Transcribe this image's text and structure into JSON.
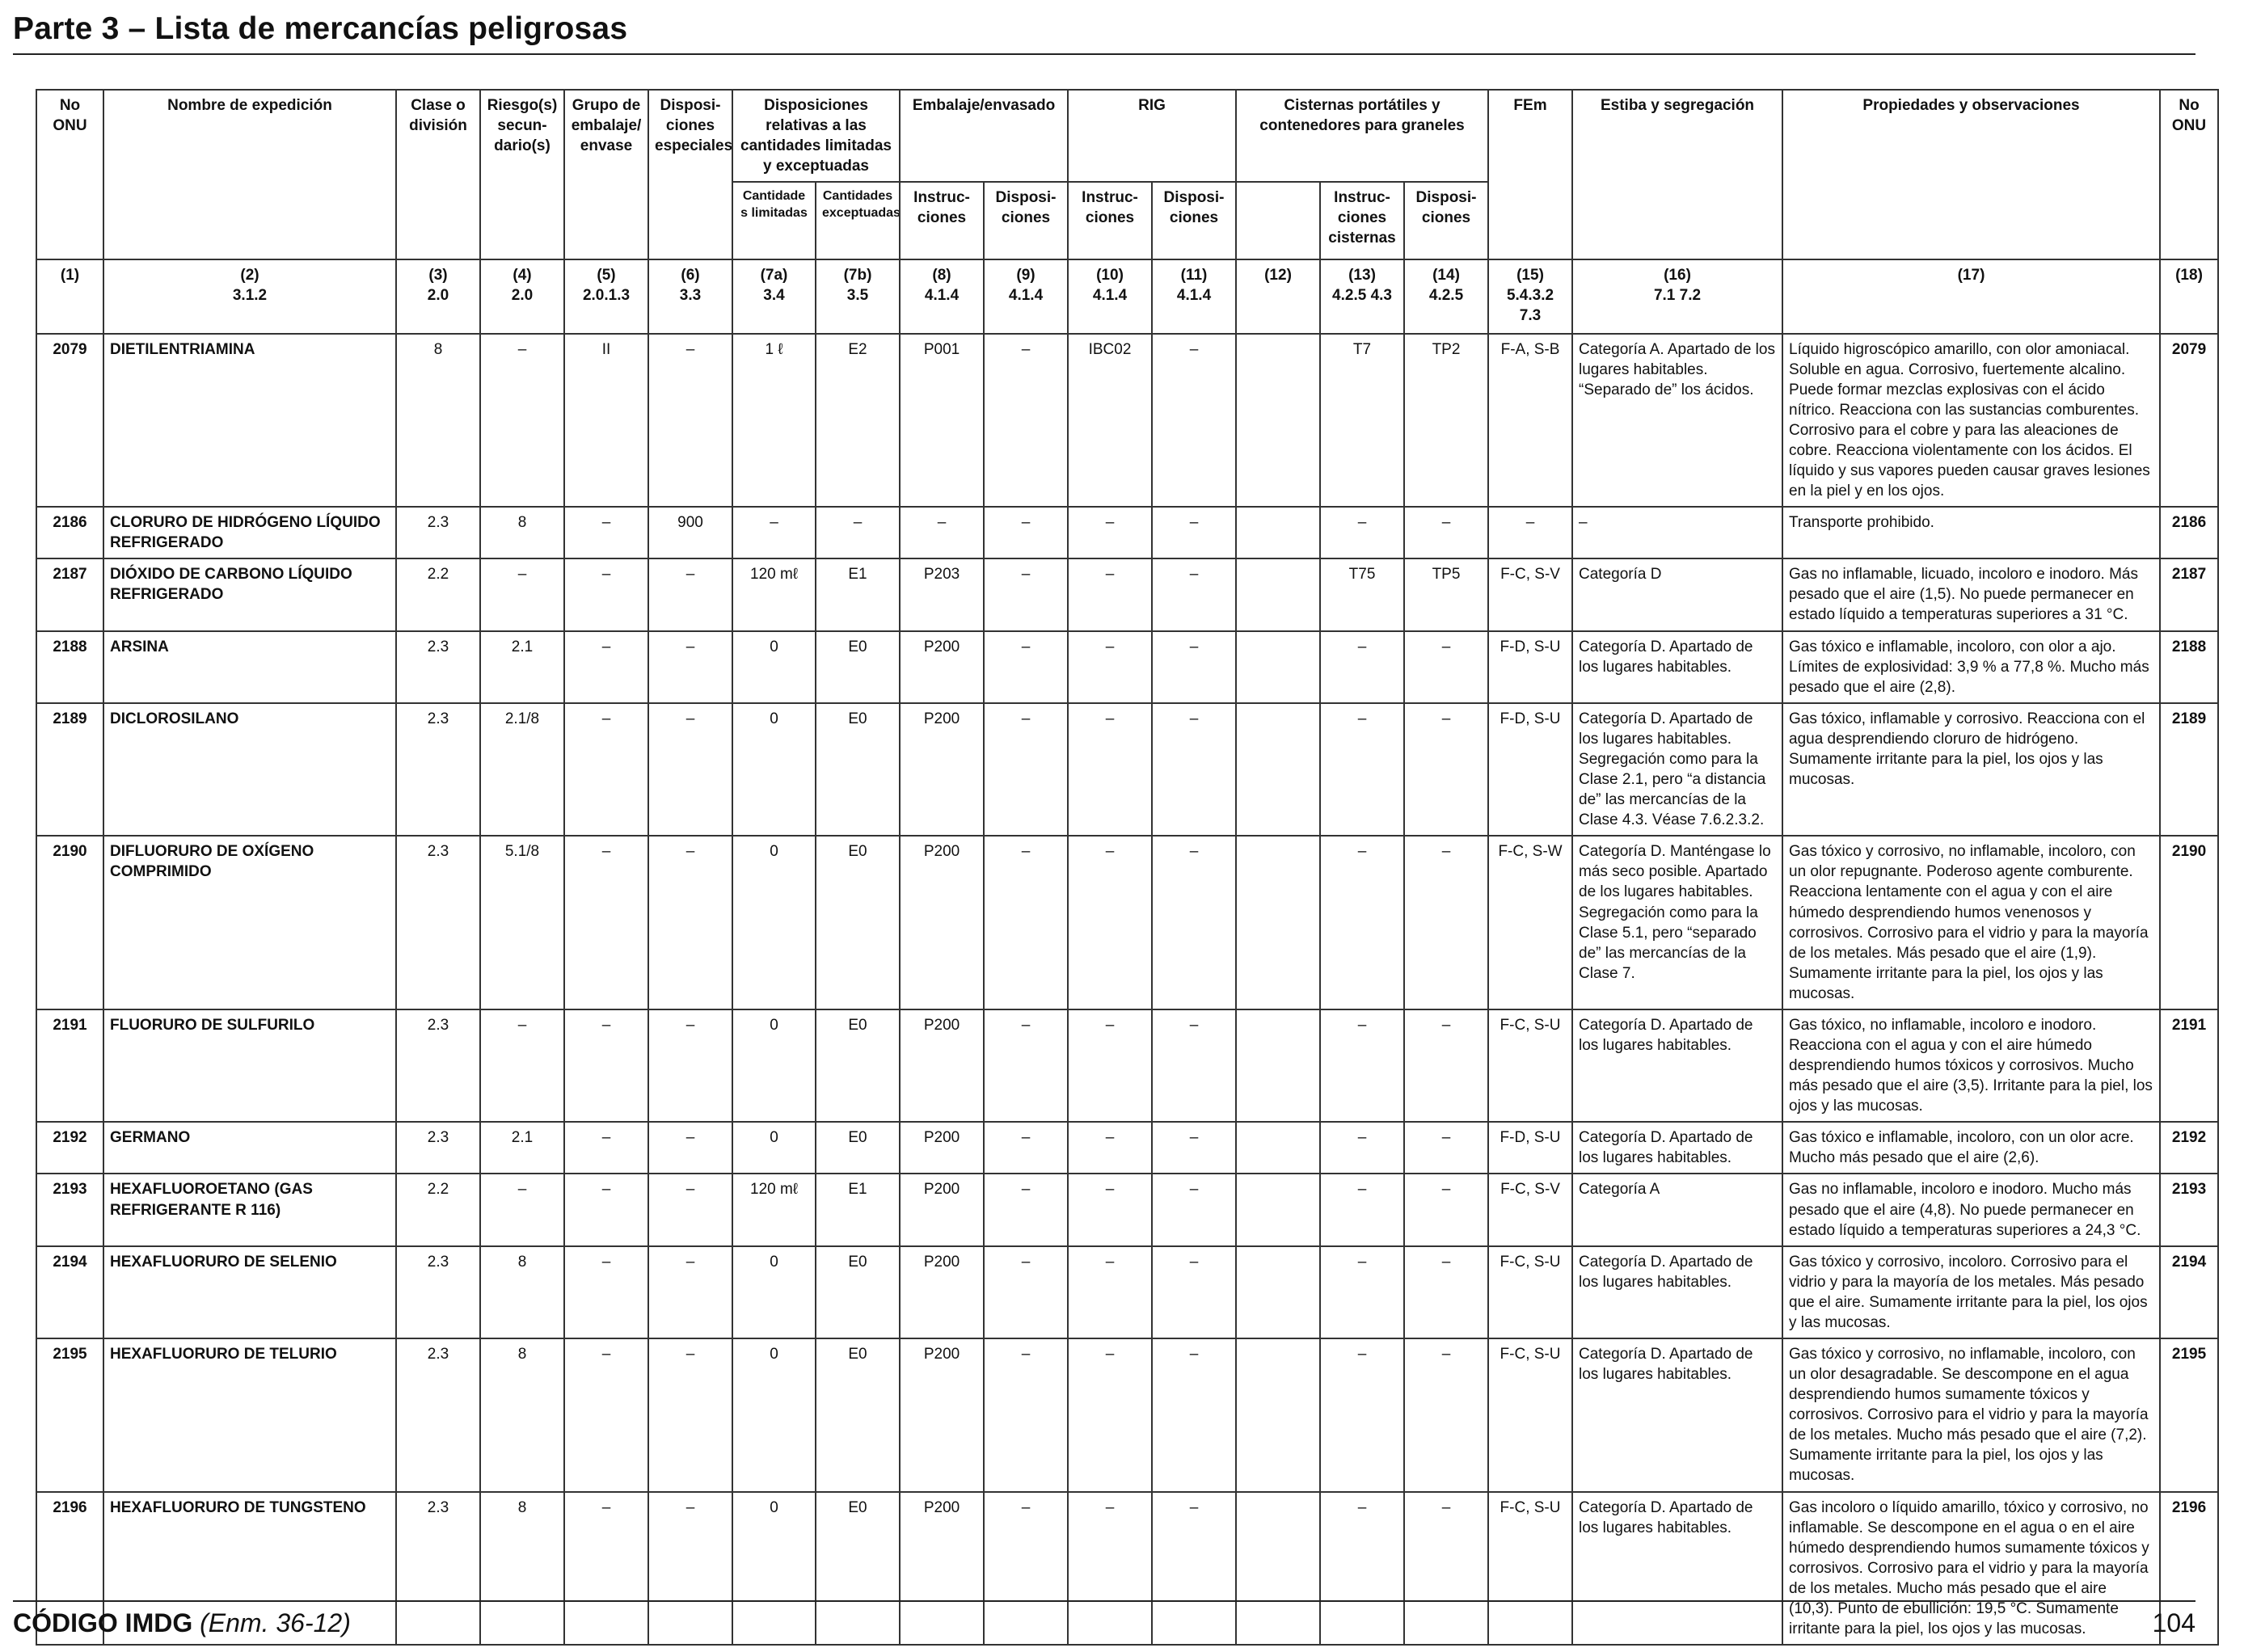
{
  "page": {
    "title": "Parte 3 – Lista de mercancías peligrosas",
    "footer_code": "CÓDIGO IMDG",
    "footer_amendment": "(Enm. 36-12)",
    "page_number": "104"
  },
  "headers": {
    "no_onu": "No ONU",
    "nombre": "Nombre de expedición",
    "clase": "Clase o división",
    "riesgo": "Riesgo(s) secun-dario(s)",
    "grupo": "Grupo de embalaje/ envase",
    "dispos_especiales": "Disposi-ciones especiales",
    "disp_relativas": "Disposiciones relativas a las cantidades limitadas y exceptuadas",
    "embalaje": "Embalaje/envasado",
    "rig": "RIG",
    "cisternas": "Cisternas portátiles y contenedores para graneles",
    "fem": "FEm",
    "estiba": "Estiba y segregación",
    "propiedades": "Propiedades y observaciones",
    "no_onu_right": "No ONU",
    "cant_limitadas": "Cantidade s limitadas",
    "cant_exceptuadas": "Cantidades exceptuadas",
    "instrucciones_8": "Instruc-ciones",
    "disposiciones_9": "Disposi-ciones",
    "instrucciones_10": "Instruc-ciones",
    "disposiciones_11": "Disposi-ciones",
    "instrucciones_13": "Instruc-ciones cisternas",
    "disposiciones_14": "Disposi-ciones"
  },
  "column_numbers": [
    {
      "n": "(1)",
      "ref": ""
    },
    {
      "n": "(2)",
      "ref": "3.1.2"
    },
    {
      "n": "(3)",
      "ref": "2.0"
    },
    {
      "n": "(4)",
      "ref": "2.0"
    },
    {
      "n": "(5)",
      "ref": "2.0.1.3"
    },
    {
      "n": "(6)",
      "ref": "3.3"
    },
    {
      "n": "(7a)",
      "ref": "3.4"
    },
    {
      "n": "(7b)",
      "ref": "3.5"
    },
    {
      "n": "(8)",
      "ref": "4.1.4"
    },
    {
      "n": "(9)",
      "ref": "4.1.4"
    },
    {
      "n": "(10)",
      "ref": "4.1.4"
    },
    {
      "n": "(11)",
      "ref": "4.1.4"
    },
    {
      "n": "(12)",
      "ref": ""
    },
    {
      "n": "(13)",
      "ref": "4.2.5 4.3"
    },
    {
      "n": "(14)",
      "ref": "4.2.5"
    },
    {
      "n": "(15)",
      "ref": "5.4.3.2 7.3"
    },
    {
      "n": "(16)",
      "ref": "7.1 7.2"
    },
    {
      "n": "(17)",
      "ref": ""
    },
    {
      "n": "(18)",
      "ref": ""
    }
  ],
  "rows": [
    {
      "no": "2079",
      "name": "DIETILENTRIAMINA",
      "clase": "8",
      "riesgo": "–",
      "grupo": "II",
      "dispos": "–",
      "c7a": "1 ℓ",
      "c7b": "E2",
      "c8": "P001",
      "c9": "–",
      "c10": "IBC02",
      "c11": "–",
      "c12": "",
      "c13": "T7",
      "c14": "TP2",
      "fem": "F-A, S-B",
      "estiba": "Categoría A. Apartado de los lugares habitables. “Separado de” los ácidos.",
      "obs": "Líquido higroscópico amarillo, con olor amoniacal. Soluble en agua. Corrosivo, fuertemente alcalino. Puede formar mezclas explosivas con el ácido nítrico. Reacciona con las sustancias comburentes. Corrosivo para el cobre y para las aleaciones de cobre. Reacciona violentamente con los ácidos. El líquido y sus vapores pueden causar graves lesiones en la piel y en los ojos.",
      "no_r": "2079"
    },
    {
      "no": "2186",
      "name": "CLORURO DE HIDRÓGENO LÍQUIDO REFRIGERADO",
      "clase": "2.3",
      "riesgo": "8",
      "grupo": "–",
      "dispos": "900",
      "c7a": "–",
      "c7b": "–",
      "c8": "–",
      "c9": "–",
      "c10": "–",
      "c11": "–",
      "c12": "",
      "c13": "–",
      "c14": "–",
      "fem": "–",
      "estiba": "–",
      "obs": "Transporte prohibido.",
      "no_r": "2186"
    },
    {
      "no": "2187",
      "name": "DIÓXIDO DE CARBONO LÍQUIDO REFRIGERADO",
      "clase": "2.2",
      "riesgo": "–",
      "grupo": "–",
      "dispos": "–",
      "c7a": "120 mℓ",
      "c7b": "E1",
      "c8": "P203",
      "c9": "–",
      "c10": "–",
      "c11": "–",
      "c12": "",
      "c13": "T75",
      "c14": "TP5",
      "fem": "F-C, S-V",
      "estiba": "Categoría D",
      "obs": "Gas no inflamable, licuado, incoloro e inodoro. Más pesado que el aire (1,5). No puede permanecer en estado líquido a temperaturas superiores a 31 °C.",
      "no_r": "2187"
    },
    {
      "no": "2188",
      "name": "ARSINA",
      "clase": "2.3",
      "riesgo": "2.1",
      "grupo": "–",
      "dispos": "–",
      "c7a": "0",
      "c7b": "E0",
      "c8": "P200",
      "c9": "–",
      "c10": "–",
      "c11": "–",
      "c12": "",
      "c13": "–",
      "c14": "–",
      "fem": "F-D, S-U",
      "estiba": "Categoría D. Apartado de los lugares habitables.",
      "obs": "Gas tóxico e inflamable, incoloro, con olor a ajo. Límites de explosividad: 3,9 % a 77,8 %. Mucho más pesado que el aire (2,8).",
      "no_r": "2188"
    },
    {
      "no": "2189",
      "name": "DICLOROSILANO",
      "clase": "2.3",
      "riesgo": "2.1/8",
      "grupo": "–",
      "dispos": "–",
      "c7a": "0",
      "c7b": "E0",
      "c8": "P200",
      "c9": "–",
      "c10": "–",
      "c11": "–",
      "c12": "",
      "c13": "–",
      "c14": "–",
      "fem": "F-D, S-U",
      "estiba": "Categoría D. Apartado de los lugares habitables. Segregación como para la Clase 2.1, pero “a distancia de” las mercancías de la Clase 4.3. Véase 7.6.2.3.2.",
      "obs": "Gas tóxico, inflamable y corrosivo. Reacciona con el agua desprendiendo cloruro de hidrógeno. Sumamente irritante para la piel, los ojos y las mucosas.",
      "no_r": "2189"
    },
    {
      "no": "2190",
      "name": "DIFLUORURO DE OXÍGENO COMPRIMIDO",
      "clase": "2.3",
      "riesgo": "5.1/8",
      "grupo": "–",
      "dispos": "–",
      "c7a": "0",
      "c7b": "E0",
      "c8": "P200",
      "c9": "–",
      "c10": "–",
      "c11": "–",
      "c12": "",
      "c13": "–",
      "c14": "–",
      "fem": "F-C, S-W",
      "estiba": "Categoría D. Manténgase lo más seco posible. Apartado de los lugares habitables. Segregación como para la Clase 5.1, pero “separado de” las mercancías de la Clase 7.",
      "obs": "Gas tóxico y corrosivo, no inflamable, incoloro, con un olor repugnante. Poderoso agente comburente. Reacciona lentamente con el agua y con el aire húmedo desprendiendo humos venenosos y corrosivos. Corrosivo para el vidrio y para la mayoría de los metales. Más pesado que el aire (1,9). Sumamente irritante para la piel, los ojos y las mucosas.",
      "no_r": "2190"
    },
    {
      "no": "2191",
      "name": "FLUORURO DE SULFURILO",
      "clase": "2.3",
      "riesgo": "–",
      "grupo": "–",
      "dispos": "–",
      "c7a": "0",
      "c7b": "E0",
      "c8": "P200",
      "c9": "–",
      "c10": "–",
      "c11": "–",
      "c12": "",
      "c13": "–",
      "c14": "–",
      "fem": "F-C, S-U",
      "estiba": "Categoría D. Apartado de los lugares habitables.",
      "obs": "Gas tóxico, no inflamable, incoloro e inodoro. Reacciona con el agua y con el aire húmedo desprendiendo humos tóxicos y corrosivos. Mucho más pesado que el aire (3,5). Irritante para la piel, los ojos y las mucosas.",
      "no_r": "2191"
    },
    {
      "no": "2192",
      "name": "GERMANO",
      "clase": "2.3",
      "riesgo": "2.1",
      "grupo": "–",
      "dispos": "–",
      "c7a": "0",
      "c7b": "E0",
      "c8": "P200",
      "c9": "–",
      "c10": "–",
      "c11": "–",
      "c12": "",
      "c13": "–",
      "c14": "–",
      "fem": "F-D, S-U",
      "estiba": "Categoría D. Apartado de los lugares habitables.",
      "obs": "Gas tóxico e inflamable, incoloro, con un olor acre. Mucho más pesado que el aire (2,6).",
      "no_r": "2192"
    },
    {
      "no": "2193",
      "name": "HEXAFLUOROETANO (GAS REFRIGERANTE R 116)",
      "clase": "2.2",
      "riesgo": "–",
      "grupo": "–",
      "dispos": "–",
      "c7a": "120 mℓ",
      "c7b": "E1",
      "c8": "P200",
      "c9": "–",
      "c10": "–",
      "c11": "–",
      "c12": "",
      "c13": "–",
      "c14": "–",
      "fem": "F-C, S-V",
      "estiba": "Categoría A",
      "obs": "Gas no inflamable, incoloro e inodoro. Mucho más pesado que el aire (4,8). No puede permanecer en estado líquido a temperaturas superiores a 24,3 °C.",
      "no_r": "2193"
    },
    {
      "no": "2194",
      "name": "HEXAFLUORURO DE SELENIO",
      "clase": "2.3",
      "riesgo": "8",
      "grupo": "–",
      "dispos": "–",
      "c7a": "0",
      "c7b": "E0",
      "c8": "P200",
      "c9": "–",
      "c10": "–",
      "c11": "–",
      "c12": "",
      "c13": "–",
      "c14": "–",
      "fem": "F-C, S-U",
      "estiba": "Categoría D. Apartado de los lugares habitables.",
      "obs": "Gas tóxico y corrosivo, incoloro. Corrosivo para el vidrio y para la mayoría de los metales. Más pesado que el aire. Sumamente irritante para la piel, los ojos y las mucosas.",
      "no_r": "2194"
    },
    {
      "no": "2195",
      "name": "HEXAFLUORURO DE TELURIO",
      "clase": "2.3",
      "riesgo": "8",
      "grupo": "–",
      "dispos": "–",
      "c7a": "0",
      "c7b": "E0",
      "c8": "P200",
      "c9": "–",
      "c10": "–",
      "c11": "–",
      "c12": "",
      "c13": "–",
      "c14": "–",
      "fem": "F-C, S-U",
      "estiba": "Categoría D. Apartado de los lugares habitables.",
      "obs": "Gas tóxico y corrosivo, no inflamable, incoloro, con un olor desagradable. Se descompone en el agua desprendiendo humos sumamente tóxicos y corrosivos. Corrosivo para el vidrio y para la mayoría de los metales. Mucho más pesado que el aire (7,2). Sumamente irritante para la piel, los ojos y las mucosas.",
      "no_r": "2195"
    },
    {
      "no": "2196",
      "name": "HEXAFLUORURO DE TUNGSTENO",
      "clase": "2.3",
      "riesgo": "8",
      "grupo": "–",
      "dispos": "–",
      "c7a": "0",
      "c7b": "E0",
      "c8": "P200",
      "c9": "–",
      "c10": "–",
      "c11": "–",
      "c12": "",
      "c13": "–",
      "c14": "–",
      "fem": "F-C, S-U",
      "estiba": "Categoría D. Apartado de los lugares habitables.",
      "obs": "Gas incoloro o líquido amarillo, tóxico y corrosivo, no inflamable. Se descompone en el agua o en el aire húmedo desprendiendo humos sumamente tóxicos y corrosivos. Corrosivo para el vidrio y para la mayoría de los metales. Mucho más pesado que el aire (10,3). Punto de ebullición: 19,5 °C. Sumamente irritante para la piel, los ojos y las mucosas.",
      "no_r": "2196"
    }
  ]
}
